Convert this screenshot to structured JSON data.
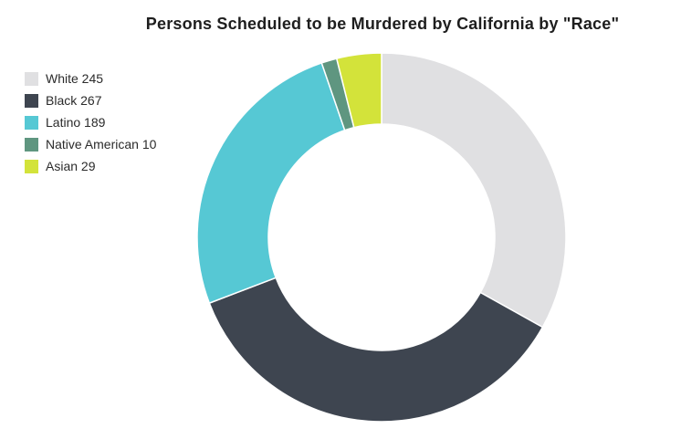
{
  "chart_data": {
    "type": "pie",
    "variant": "donut",
    "title": "Persons Scheduled to be Murdered by California by \"Race\"",
    "legend_position": "top-left",
    "categories": [
      "White",
      "Black",
      "Latino",
      "Native American",
      "Asian"
    ],
    "values": [
      245,
      267,
      189,
      10,
      29
    ],
    "legend": [
      {
        "label": "White 245",
        "color": "#e0e0e2"
      },
      {
        "label": "Black 267",
        "color": "#3e4550"
      },
      {
        "label": "Latino 189",
        "color": "#56c8d4"
      },
      {
        "label": "Native American 10",
        "color": "#5f9680"
      },
      {
        "label": "Asian 29",
        "color": "#d3e33a"
      }
    ]
  }
}
